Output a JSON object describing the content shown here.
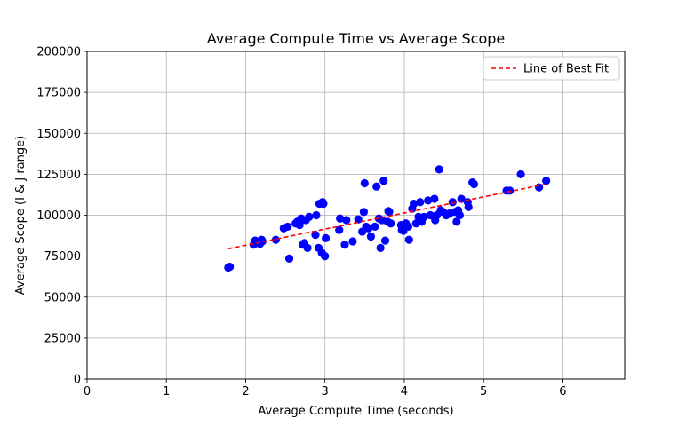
{
  "chart_data": {
    "type": "scatter",
    "title": "Average Compute Time vs Average Scope",
    "xlabel": "Average Compute Time (seconds)",
    "ylabel": "Average Scope (I & J range)",
    "xlim": [
      0,
      6.78
    ],
    "ylim": [
      0,
      200000
    ],
    "xticks": [
      0,
      1,
      2,
      3,
      4,
      5,
      6
    ],
    "yticks": [
      0,
      25000,
      50000,
      75000,
      100000,
      125000,
      150000,
      175000,
      200000
    ],
    "grid": true,
    "legend": {
      "placement": "top-right",
      "entries": [
        "Line of Best Fit"
      ]
    },
    "colors": {
      "points": "#0000ff",
      "fit_line": "#ff0000"
    },
    "series": [
      {
        "kind": "points",
        "x": [
          1.78,
          1.8,
          2.1,
          2.12,
          2.18,
          2.2,
          2.21,
          2.38,
          2.48,
          2.53,
          2.55,
          2.63,
          2.65,
          2.68,
          2.7,
          2.71,
          2.72,
          2.74,
          2.76,
          2.78,
          2.8,
          2.88,
          2.89,
          2.92,
          2.93,
          2.96,
          2.97,
          2.98,
          3.0,
          3.01,
          3.18,
          3.19,
          3.25,
          3.27,
          3.35,
          3.42,
          3.47,
          3.49,
          3.5,
          3.52,
          3.55,
          3.58,
          3.63,
          3.65,
          3.68,
          3.7,
          3.72,
          3.74,
          3.76,
          3.79,
          3.8,
          3.81,
          3.83,
          3.96,
          3.97,
          3.99,
          4.02,
          4.05,
          4.06,
          4.1,
          4.12,
          4.15,
          4.18,
          4.2,
          4.22,
          4.25,
          4.3,
          4.33,
          4.38,
          4.39,
          4.41,
          4.44,
          4.46,
          4.49,
          4.53,
          4.57,
          4.61,
          4.64,
          4.66,
          4.68,
          4.7,
          4.72,
          4.8,
          4.81,
          4.86,
          4.88,
          5.29,
          5.33,
          5.47,
          5.7,
          5.79
        ],
        "y": [
          68000,
          68500,
          82000,
          84500,
          82500,
          85000,
          84000,
          85000,
          92000,
          93000,
          73500,
          95000,
          96000,
          94000,
          98000,
          97000,
          82000,
          83000,
          97000,
          80000,
          99000,
          88000,
          100000,
          80000,
          107000,
          77000,
          108000,
          107000,
          75000,
          86000,
          91000,
          98000,
          82000,
          97000,
          84000,
          97500,
          90000,
          102000,
          119500,
          93000,
          92000,
          87000,
          93000,
          117500,
          98000,
          80000,
          97000,
          121000,
          84500,
          96000,
          102500,
          102000,
          95000,
          94000,
          91000,
          90500,
          95000,
          93000,
          85000,
          104000,
          107000,
          95000,
          99000,
          108000,
          96000,
          99000,
          109000,
          100000,
          110000,
          97000,
          100000,
          128000,
          103000,
          102000,
          100000,
          101000,
          108000,
          102000,
          96000,
          103000,
          100000,
          110000,
          108000,
          105000,
          120000,
          119000,
          115000,
          115000,
          125000,
          117000,
          121000
        ]
      },
      {
        "kind": "line",
        "name": "Line of Best Fit",
        "x": [
          1.78,
          5.79
        ],
        "y": [
          79500,
          119000
        ]
      }
    ]
  }
}
